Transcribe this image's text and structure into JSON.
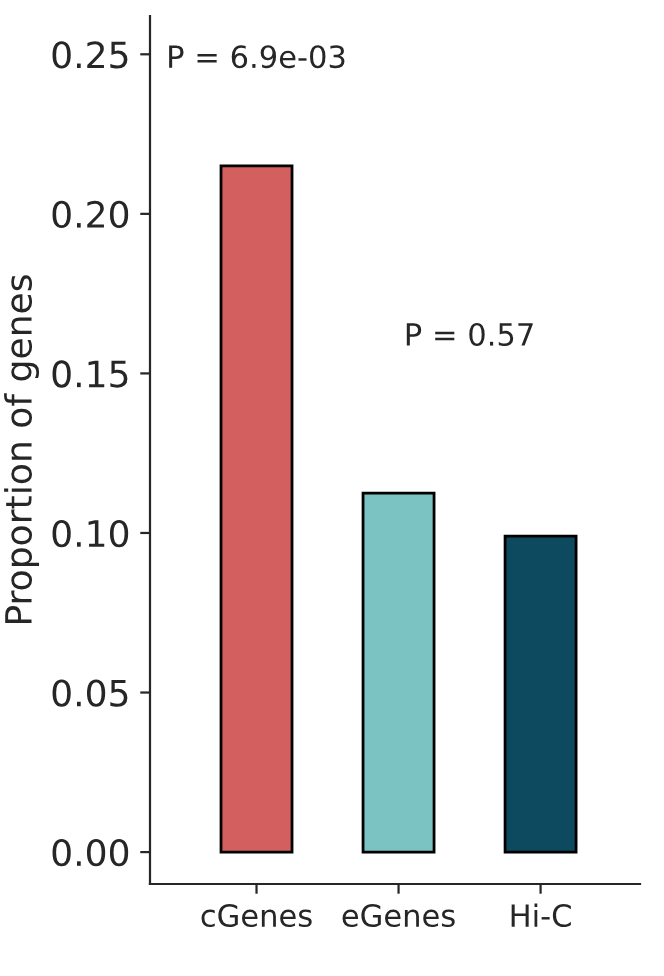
{
  "chart_data": {
    "type": "bar",
    "ylabel": "Proportion of genes",
    "categories": [
      "cGenes",
      "eGenes",
      "Hi-C"
    ],
    "values": [
      0.215,
      0.1125,
      0.099
    ],
    "colors": [
      "#d45f5f",
      "#7bc2c3",
      "#0d4a5f"
    ],
    "ylim": [
      -0.01,
      0.262
    ],
    "yticks": [
      {
        "value": 0,
        "label": "0.00"
      },
      {
        "value": 0.05,
        "label": "0.05"
      },
      {
        "value": 0.1,
        "label": "0.10"
      },
      {
        "value": 0.15,
        "label": "0.15"
      },
      {
        "value": 0.2,
        "label": "0.20"
      },
      {
        "value": 0.25,
        "label": "0.25"
      }
    ],
    "annotations": [
      "P = 6.9e-03",
      "P = 0.57"
    ],
    "grid": false,
    "legend": false
  }
}
